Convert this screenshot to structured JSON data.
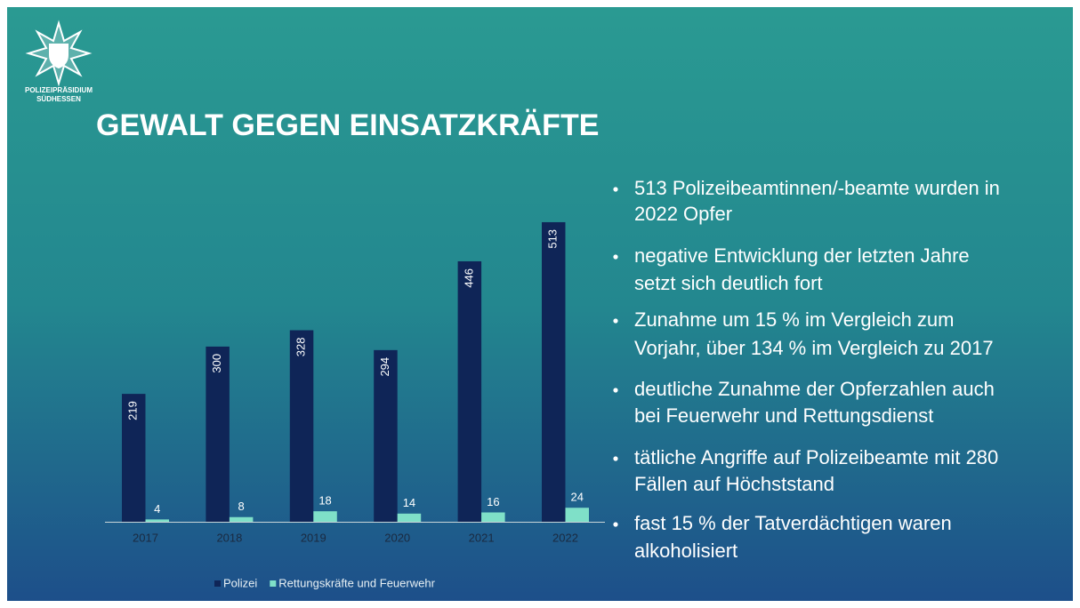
{
  "header": {
    "org_line1": "POLIZEIPRÄSIDIUM",
    "org_line2": "SÜDHESSEN",
    "title": "GEWALT GEGEN EINSATZKRÄFTE"
  },
  "bullets": [
    [
      "513 Polizeibeamtinnen/-beamte wurden in",
      "2022 Opfer"
    ],
    [
      "negative Entwicklung der letzten Jahre",
      "setzt sich deutlich fort"
    ],
    [
      "Zunahme um 15 % im Vergleich zum",
      "Vorjahr, über 134 % im Vergleich zu 2017"
    ],
    [
      "deutliche Zunahme der Opferzahlen auch",
      "bei Feuerwehr und Rettungsdienst"
    ],
    [
      "tätliche Angriffe auf Polizeibeamte mit 280",
      "Fällen auf Höchststand"
    ],
    [
      "fast 15 % der Tatverdächtigen waren",
      "alkoholisiert"
    ]
  ],
  "chart_data": {
    "type": "bar",
    "categories": [
      "2017",
      "2018",
      "2019",
      "2020",
      "2021",
      "2022"
    ],
    "series": [
      {
        "name": "Polizei",
        "color": "#0f2557",
        "values": [
          219,
          300,
          328,
          294,
          446,
          513
        ]
      },
      {
        "name": "Rettungskräfte und Feuerwehr",
        "color": "#7fe0c8",
        "values": [
          4,
          8,
          18,
          14,
          16,
          24
        ]
      }
    ]
  }
}
